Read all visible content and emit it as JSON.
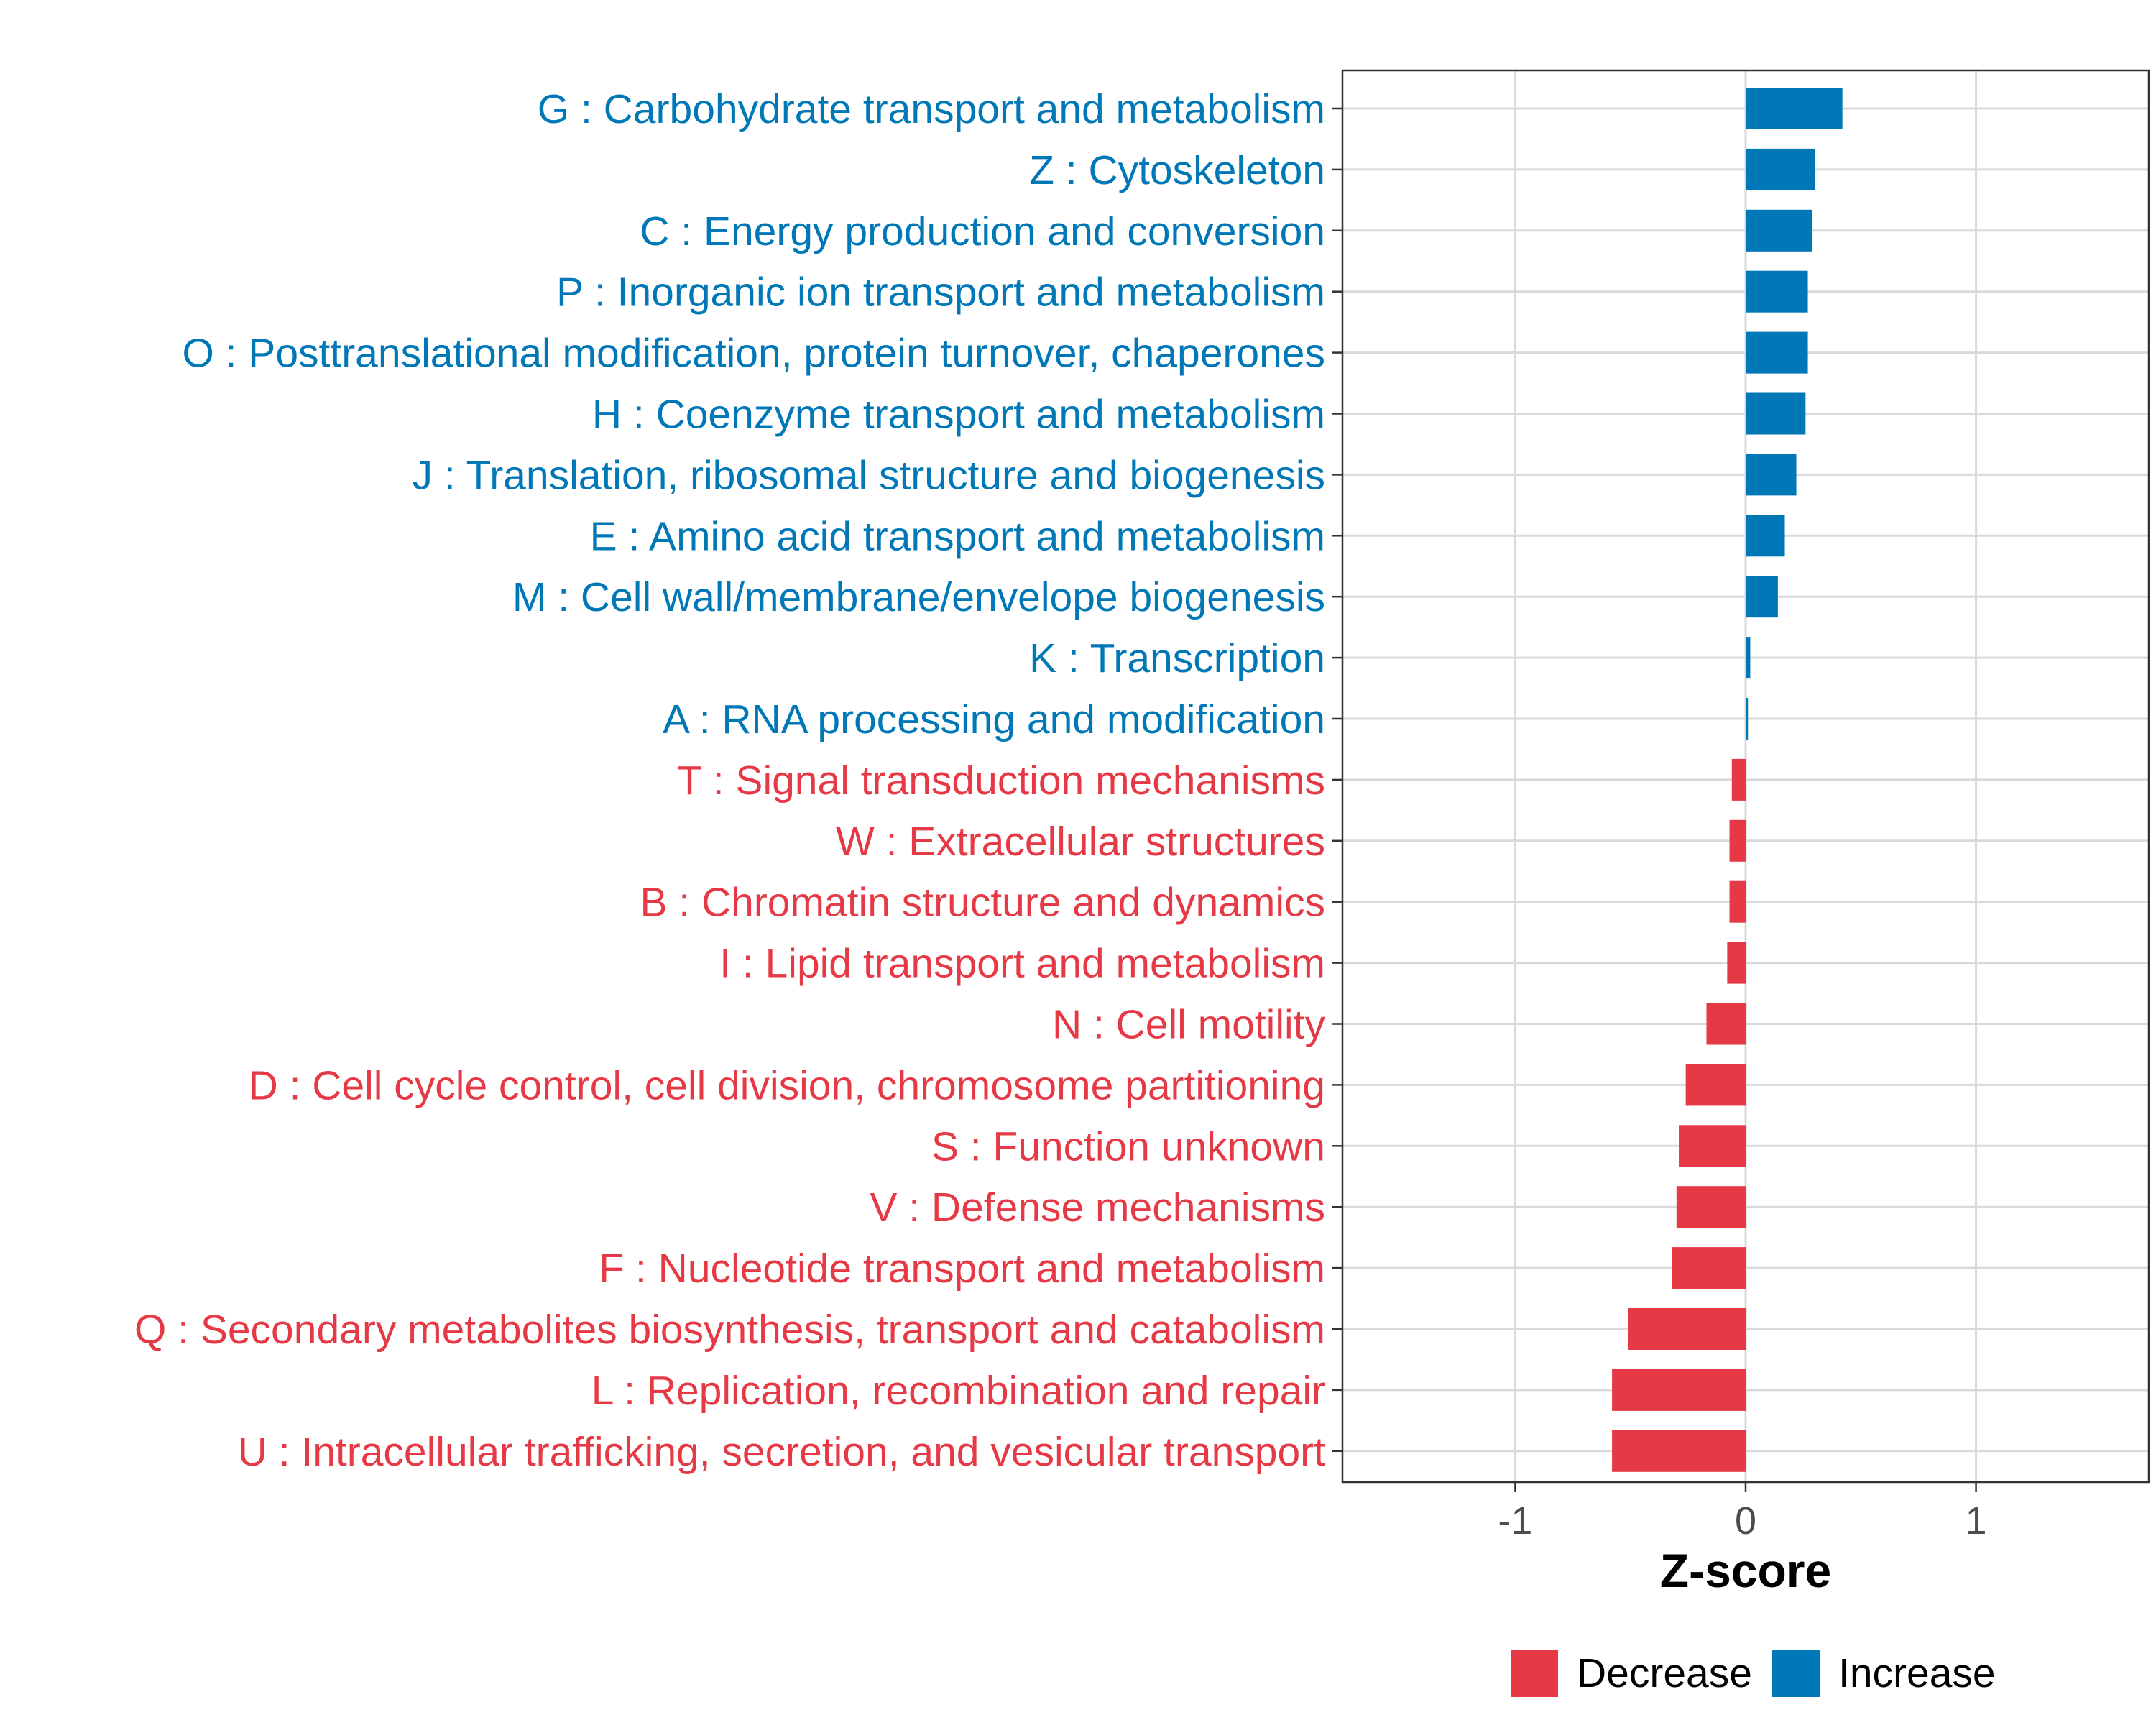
{
  "chart_data": {
    "type": "bar",
    "orientation": "horizontal",
    "xlabel": "Z-score",
    "xlim": [
      -1.75,
      1.75
    ],
    "xticks": [
      -1,
      0,
      1
    ],
    "xtick_labels": [
      "-1",
      "0",
      "1"
    ],
    "grid": true,
    "colors": {
      "Decrease": "#e63946",
      "Increase": "#0077b6"
    },
    "legend": {
      "position": "bottom",
      "entries": [
        {
          "name": "Decrease",
          "color": "#e63946"
        },
        {
          "name": "Increase",
          "color": "#0077b6"
        }
      ]
    },
    "categories": [
      {
        "label": "G : Carbohydrate transport and metabolism",
        "value": 0.42,
        "direction": "Increase"
      },
      {
        "label": "Z : Cytoskeleton",
        "value": 0.3,
        "direction": "Increase"
      },
      {
        "label": "C : Energy production and conversion",
        "value": 0.29,
        "direction": "Increase"
      },
      {
        "label": "P : Inorganic ion transport and metabolism",
        "value": 0.27,
        "direction": "Increase"
      },
      {
        "label": "O : Posttranslational modification, protein turnover, chaperones",
        "value": 0.27,
        "direction": "Increase"
      },
      {
        "label": "H : Coenzyme transport and metabolism",
        "value": 0.26,
        "direction": "Increase"
      },
      {
        "label": "J : Translation, ribosomal structure and biogenesis",
        "value": 0.22,
        "direction": "Increase"
      },
      {
        "label": "E : Amino acid transport and metabolism",
        "value": 0.17,
        "direction": "Increase"
      },
      {
        "label": "M : Cell wall/membrane/envelope biogenesis",
        "value": 0.14,
        "direction": "Increase"
      },
      {
        "label": "K : Transcription",
        "value": 0.02,
        "direction": "Increase"
      },
      {
        "label": "A : RNA processing and modification",
        "value": 0.01,
        "direction": "Increase"
      },
      {
        "label": "T : Signal transduction mechanisms",
        "value": -0.06,
        "direction": "Decrease"
      },
      {
        "label": "W : Extracellular structures",
        "value": -0.07,
        "direction": "Decrease"
      },
      {
        "label": "B : Chromatin structure and dynamics",
        "value": -0.07,
        "direction": "Decrease"
      },
      {
        "label": "I : Lipid transport and metabolism",
        "value": -0.08,
        "direction": "Decrease"
      },
      {
        "label": "N : Cell motility",
        "value": -0.17,
        "direction": "Decrease"
      },
      {
        "label": "D : Cell cycle control, cell division, chromosome partitioning",
        "value": -0.26,
        "direction": "Decrease"
      },
      {
        "label": "S : Function unknown",
        "value": -0.29,
        "direction": "Decrease"
      },
      {
        "label": "V : Defense mechanisms",
        "value": -0.3,
        "direction": "Decrease"
      },
      {
        "label": "F : Nucleotide transport and metabolism",
        "value": -0.32,
        "direction": "Decrease"
      },
      {
        "label": "Q : Secondary metabolites biosynthesis, transport and catabolism",
        "value": -0.51,
        "direction": "Decrease"
      },
      {
        "label": "L : Replication, recombination and repair",
        "value": -0.58,
        "direction": "Decrease"
      },
      {
        "label": "U : Intracellular trafficking, secretion, and vesicular transport",
        "value": -0.58,
        "direction": "Decrease"
      }
    ]
  }
}
